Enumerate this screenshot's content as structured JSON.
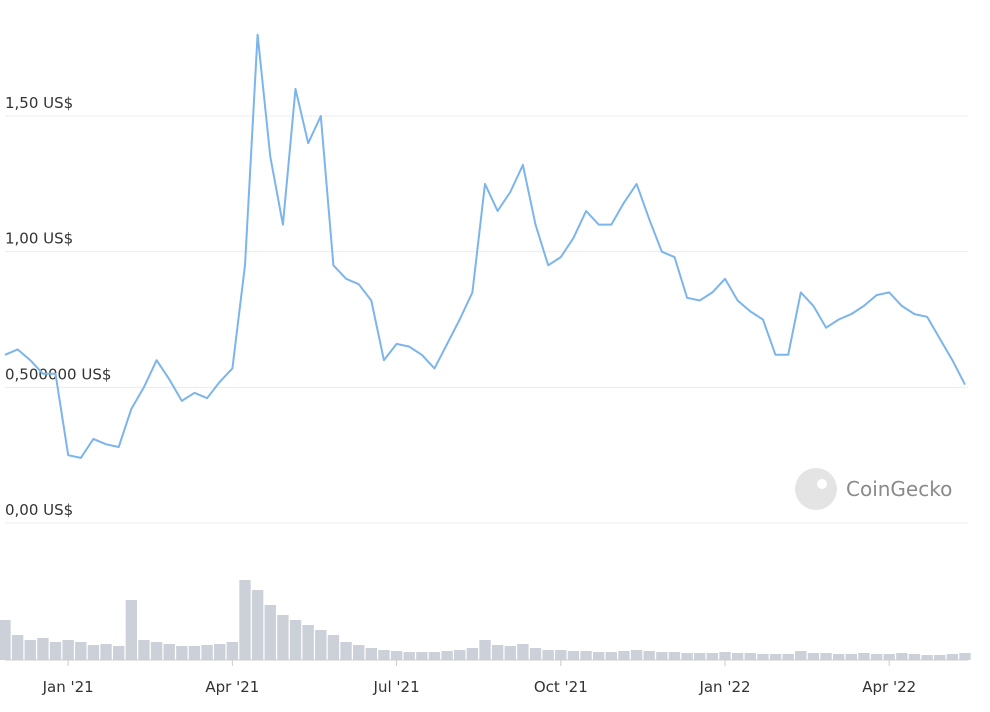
{
  "chart_data": {
    "type": "line",
    "watermark": "CoinGecko",
    "categories": [
      null,
      null,
      null,
      null,
      null,
      "Jan '21",
      null,
      null,
      null,
      null,
      null,
      null,
      null,
      null,
      null,
      null,
      null,
      null,
      "Apr '21",
      null,
      null,
      null,
      null,
      null,
      null,
      null,
      null,
      null,
      null,
      null,
      null,
      "Jul '21",
      null,
      null,
      null,
      null,
      null,
      null,
      null,
      null,
      null,
      null,
      null,
      null,
      "Oct '21",
      null,
      null,
      null,
      null,
      null,
      null,
      null,
      null,
      null,
      null,
      null,
      null,
      "Jan '22",
      null,
      null,
      null,
      null,
      null,
      null,
      null,
      null,
      null,
      null,
      null,
      null,
      "Apr '22",
      null,
      null,
      null,
      null,
      null,
      null
    ],
    "series": [
      {
        "color": "#7cb5ec",
        "values": [
          0.62,
          0.64,
          0.6,
          0.55,
          0.55,
          0.25,
          0.24,
          0.31,
          0.29,
          0.28,
          0.42,
          0.5,
          0.6,
          0.53,
          0.45,
          0.48,
          0.46,
          0.52,
          0.57,
          0.95,
          1.8,
          1.35,
          1.1,
          1.6,
          1.4,
          1.5,
          0.95,
          0.9,
          0.88,
          0.82,
          0.6,
          0.66,
          0.65,
          0.62,
          0.57,
          0.66,
          0.75,
          0.85,
          1.25,
          1.15,
          1.22,
          1.32,
          1.1,
          0.95,
          0.98,
          1.05,
          1.15,
          1.1,
          1.1,
          1.18,
          1.25,
          1.12,
          1.0,
          0.98,
          0.83,
          0.82,
          0.85,
          0.9,
          0.82,
          0.78,
          0.75,
          0.62,
          0.62,
          0.85,
          0.8,
          0.72,
          0.75,
          0.77,
          0.8,
          0.84,
          0.85,
          0.8,
          0.77,
          0.76,
          0.68,
          0.6,
          0.51
        ]
      }
    ],
    "volume": {
      "color": "#ccd0d8",
      "values": [
        40,
        25,
        20,
        22,
        18,
        20,
        18,
        15,
        16,
        14,
        60,
        20,
        18,
        16,
        14,
        14,
        15,
        16,
        18,
        80,
        70,
        55,
        45,
        40,
        35,
        30,
        25,
        18,
        15,
        12,
        10,
        9,
        8,
        8,
        8,
        9,
        10,
        12,
        20,
        15,
        14,
        16,
        12,
        10,
        10,
        9,
        9,
        8,
        8,
        9,
        10,
        9,
        8,
        8,
        7,
        7,
        7,
        8,
        7,
        7,
        6,
        6,
        6,
        9,
        7,
        7,
        6,
        6,
        7,
        6,
        6,
        7,
        6,
        5,
        5,
        6,
        7
      ]
    },
    "ylim": [
      0,
      1.9
    ],
    "yticks": [
      {
        "value": 0,
        "label": "0,00 US$"
      },
      {
        "value": 0.5,
        "label": "0,500000 US$"
      },
      {
        "value": 1,
        "label": "1,00 US$"
      },
      {
        "value": 1.5,
        "label": "1,50 US$"
      }
    ],
    "grid": true
  }
}
